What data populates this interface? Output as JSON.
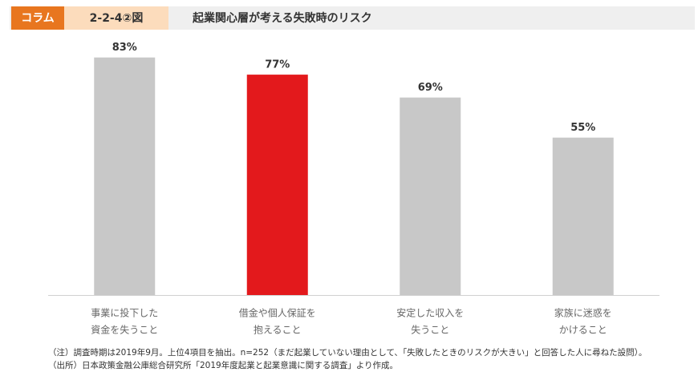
{
  "header": {
    "tag": "コラム",
    "figure_number": "2-2-4②図"
  },
  "chart_data": {
    "type": "bar",
    "title": "起業関心層が考える失敗時のリスク",
    "categories": [
      [
        "事業に投下した",
        "資金を失うこと"
      ],
      [
        "借金や個人保証を",
        "抱えること"
      ],
      [
        "安定した収入を",
        "失うこと"
      ],
      [
        "家族に迷惑を",
        "かけること"
      ]
    ],
    "values": [
      83,
      77,
      69,
      55
    ],
    "value_labels": [
      "83%",
      "77%",
      "69%",
      "55%"
    ],
    "colors": [
      "#c8c8c8",
      "#e3191c",
      "#c8c8c8",
      "#c8c8c8"
    ],
    "ylim": [
      0,
      100
    ]
  },
  "notes": [
    "（注）調査時期は2019年9月。上位4項目を抽出。n=252（まだ起業していない理由として、「失敗したときのリスクが大きい」と回答した人に尋ねた設問）。",
    "（出所）日本政策金融公庫総合研究所「2019年度起業と起業意識に関する調査」より作成。"
  ]
}
